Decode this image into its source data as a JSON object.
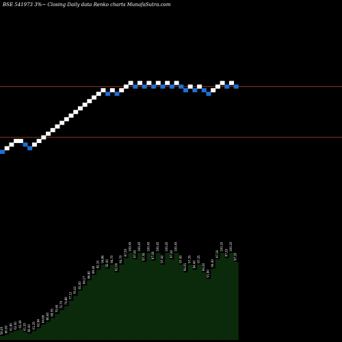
{
  "chart_data": {
    "type": "renko",
    "title": "BSE 541973 3%~   Closing Daily data  Renko  charts MunafaSutra.com",
    "colors": {
      "background": "#000000",
      "up_brick": "#ffffff",
      "down_brick": "#1f6fd6",
      "reference_line": "#8a3a1a",
      "volume_fill": "#0b2a0b",
      "volume_edge": "#000000"
    },
    "bricks": [
      {
        "level": 0,
        "dir": "down"
      },
      {
        "level": 1,
        "dir": "up"
      },
      {
        "level": 2,
        "dir": "up"
      },
      {
        "level": 3,
        "dir": "up"
      },
      {
        "level": 3,
        "dir": "up"
      },
      {
        "level": 2,
        "dir": "down"
      },
      {
        "level": 1,
        "dir": "down"
      },
      {
        "level": 2,
        "dir": "up"
      },
      {
        "level": 3,
        "dir": "up"
      },
      {
        "level": 4,
        "dir": "up"
      },
      {
        "level": 5,
        "dir": "up"
      },
      {
        "level": 6,
        "dir": "up"
      },
      {
        "level": 7,
        "dir": "up"
      },
      {
        "level": 8,
        "dir": "up"
      },
      {
        "level": 9,
        "dir": "up"
      },
      {
        "level": 10,
        "dir": "up"
      },
      {
        "level": 11,
        "dir": "up"
      },
      {
        "level": 12,
        "dir": "up"
      },
      {
        "level": 13,
        "dir": "up"
      },
      {
        "level": 14,
        "dir": "up"
      },
      {
        "level": 15,
        "dir": "up"
      },
      {
        "level": 16,
        "dir": "up"
      },
      {
        "level": 17,
        "dir": "up"
      },
      {
        "level": 16,
        "dir": "down"
      },
      {
        "level": 17,
        "dir": "up"
      },
      {
        "level": 16,
        "dir": "down"
      },
      {
        "level": 17,
        "dir": "up"
      },
      {
        "level": 18,
        "dir": "up"
      },
      {
        "level": 19,
        "dir": "up"
      },
      {
        "level": 18,
        "dir": "down"
      },
      {
        "level": 19,
        "dir": "up"
      },
      {
        "level": 18,
        "dir": "down"
      },
      {
        "level": 19,
        "dir": "up"
      },
      {
        "level": 18,
        "dir": "down"
      },
      {
        "level": 19,
        "dir": "up"
      },
      {
        "level": 18,
        "dir": "down"
      },
      {
        "level": 19,
        "dir": "up"
      },
      {
        "level": 18,
        "dir": "down"
      },
      {
        "level": 19,
        "dir": "up"
      },
      {
        "level": 18,
        "dir": "down"
      },
      {
        "level": 17,
        "dir": "down"
      },
      {
        "level": 18,
        "dir": "up"
      },
      {
        "level": 17,
        "dir": "down"
      },
      {
        "level": 18,
        "dir": "up"
      },
      {
        "level": 17,
        "dir": "down"
      },
      {
        "level": 16,
        "dir": "down"
      },
      {
        "level": 17,
        "dir": "up"
      },
      {
        "level": 18,
        "dir": "up"
      },
      {
        "level": 19,
        "dir": "up"
      },
      {
        "level": 18,
        "dir": "down"
      },
      {
        "level": 19,
        "dir": "up"
      },
      {
        "level": 18,
        "dir": "down"
      }
    ],
    "reference_levels": [
      18,
      4
    ],
    "volume_labels": [
      "59.45",
      "60.00",
      "61.80",
      "62.00",
      "62.49",
      "61.20",
      "60.00",
      "61.35",
      "62.84",
      "64.66",
      "66.60",
      "68.55",
      "70.60",
      "72.70",
      "74.88",
      "77.12",
      "79.43",
      "81.83",
      "84.27",
      "86.80",
      "89.40",
      "92.10",
      "94.86",
      "92.00",
      "94.70",
      "92.00",
      "94.70",
      "97.55",
      "100.45",
      "97.40",
      "100.45",
      "97.40",
      "100.45",
      "97.40",
      "100.45",
      "97.40",
      "100.45",
      "97.40",
      "100.45",
      "97.40",
      "94.45",
      "97.35",
      "94.40",
      "97.35",
      "94.40",
      "91.60",
      "94.40",
      "97.30",
      "100.20",
      "97.20",
      "100.20",
      "97.20"
    ],
    "volume_heights": [
      3,
      4,
      6,
      7,
      8,
      6,
      5,
      7,
      9,
      12,
      14,
      17,
      20,
      23,
      26,
      30,
      34,
      38,
      42,
      46,
      50,
      54,
      58,
      55,
      58,
      52,
      58,
      63,
      67,
      62,
      67,
      60,
      67,
      61,
      67,
      58,
      67,
      62,
      67,
      58,
      52,
      58,
      54,
      58,
      52,
      47,
      55,
      62,
      67,
      63,
      67,
      60
    ]
  }
}
